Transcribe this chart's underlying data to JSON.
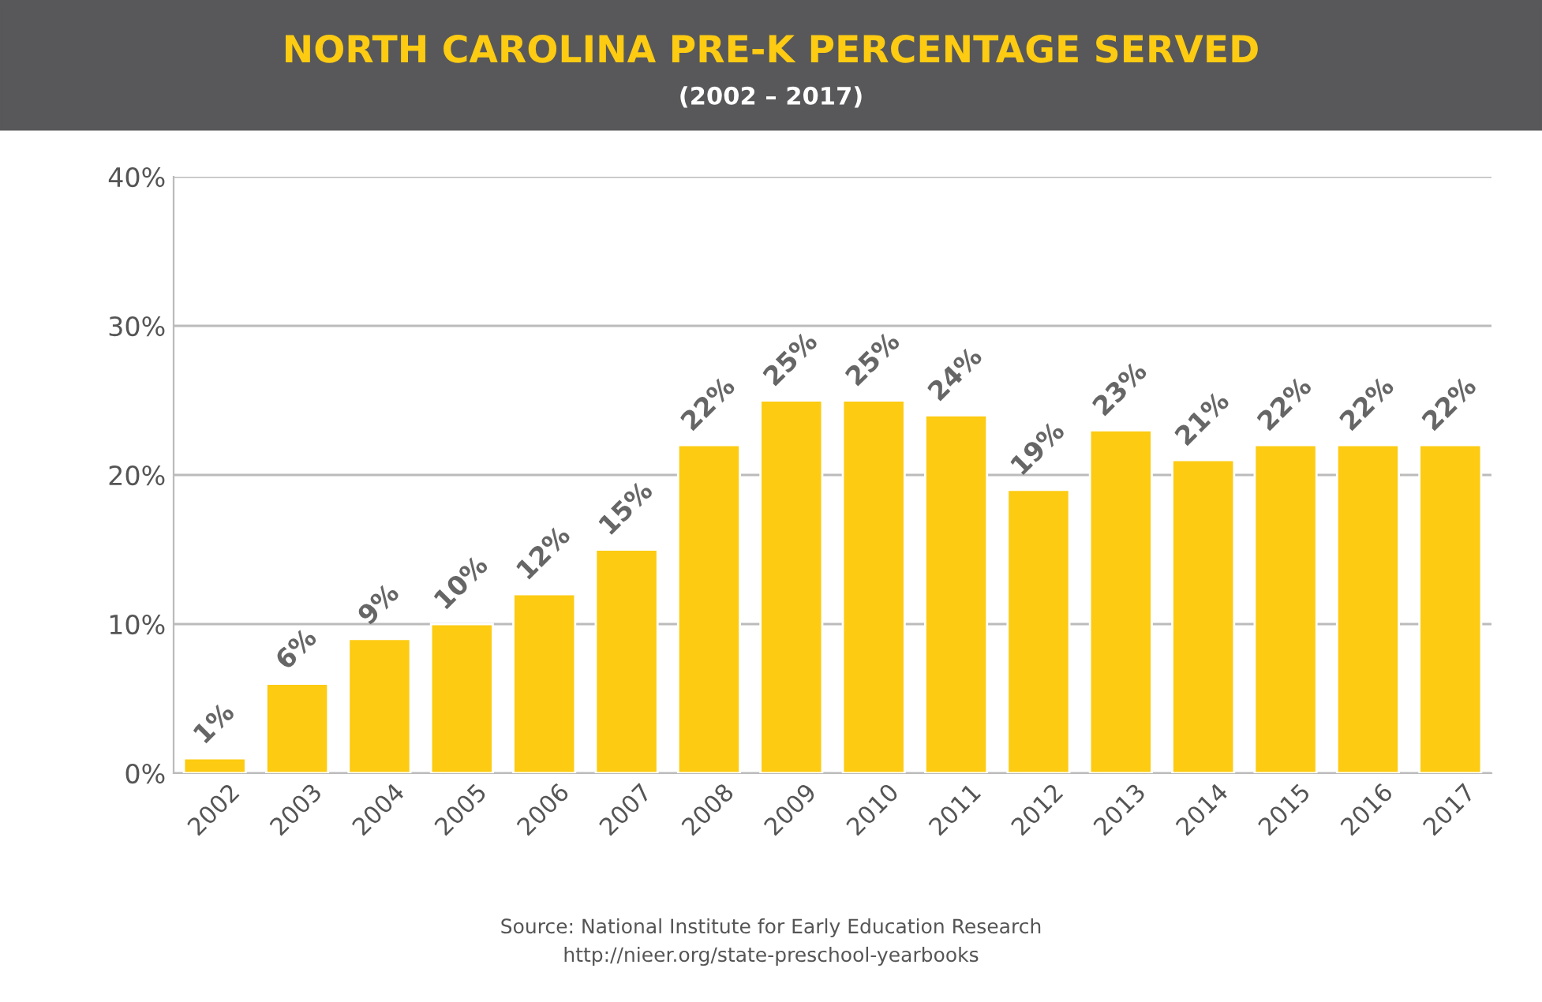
{
  "chart_data": {
    "type": "bar",
    "title": "NORTH CAROLINA PRE-K PERCENTAGE SERVED",
    "subtitle": "(2002 – 2017)",
    "categories": [
      "2002",
      "2003",
      "2004",
      "2005",
      "2006",
      "2007",
      "2008",
      "2009",
      "2010",
      "2011",
      "2012",
      "2013",
      "2014",
      "2015",
      "2016",
      "2017"
    ],
    "values": [
      1,
      6,
      9,
      10,
      12,
      15,
      22,
      25,
      25,
      24,
      19,
      23,
      21,
      22,
      22,
      22
    ],
    "value_labels": [
      "1%",
      "6%",
      "9%",
      "10%",
      "12%",
      "15%",
      "22%",
      "25%",
      "25%",
      "24%",
      "19%",
      "23%",
      "21%",
      "22%",
      "22%",
      "22%"
    ],
    "color": "#fccb12",
    "ylim": [
      0,
      40
    ],
    "yticks": [
      {
        "value": 0,
        "label": "0%"
      },
      {
        "value": 10,
        "label": "10%"
      },
      {
        "value": 20,
        "label": "20%"
      },
      {
        "value": 30,
        "label": "30%"
      },
      {
        "value": 40,
        "label": "40%"
      }
    ],
    "grid": "y",
    "annotations": [
      "Source: National Institute for Early Education Research",
      "http://nieer.org/state-preschool-yearbooks"
    ]
  }
}
